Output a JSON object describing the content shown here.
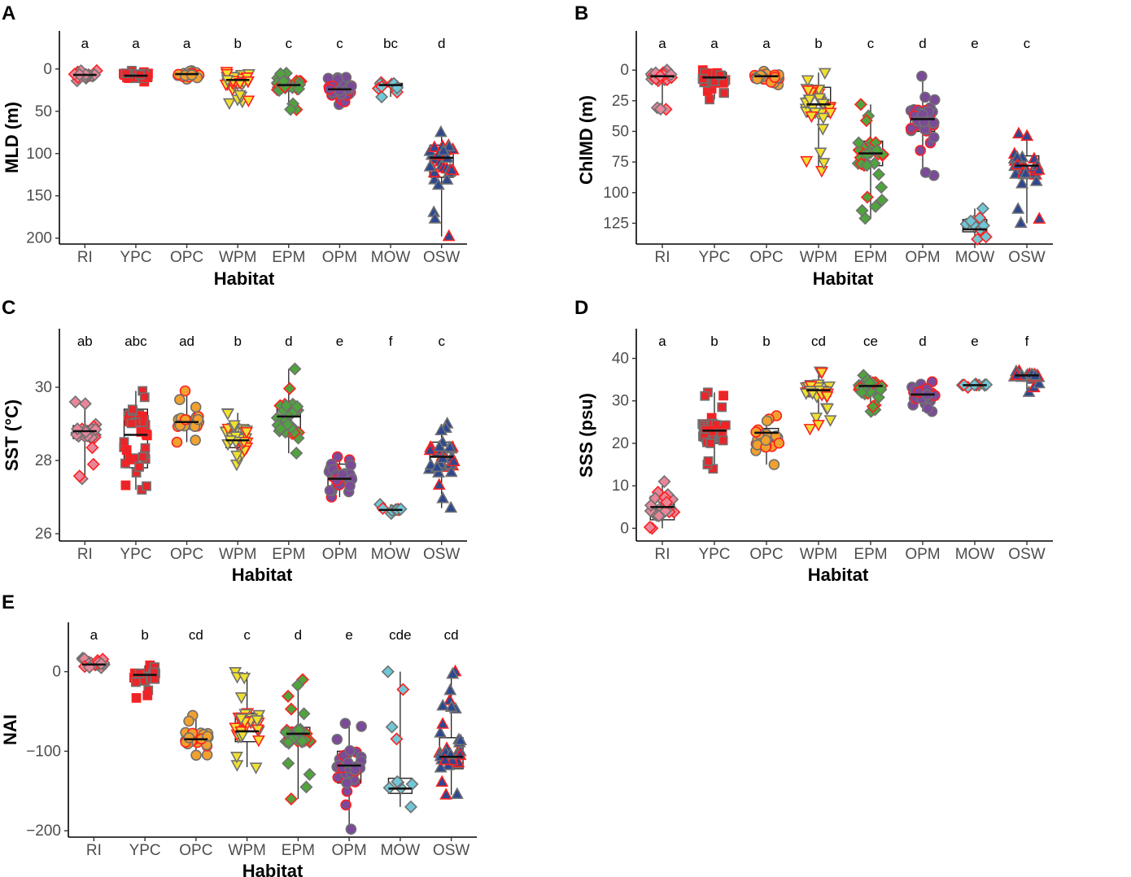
{
  "chart_data": [
    {
      "panel": "A",
      "type": "box",
      "xlabel": "Habitat",
      "ylabel": "MLD (m)",
      "y_reversed": true,
      "ylim": [
        -45,
        207
      ],
      "yticks": [
        0,
        50,
        100,
        150,
        200
      ],
      "categories": [
        "RI",
        "YPC",
        "OPC",
        "WPM",
        "EPM",
        "OPM",
        "MOW",
        "OSW"
      ],
      "letters": [
        "a",
        "a",
        "a",
        "b",
        "c",
        "c",
        "bc",
        "d"
      ],
      "boxes": [
        {
          "q1": 5,
          "median": 7,
          "q3": 9,
          "min": 2,
          "max": 14
        },
        {
          "q1": 5,
          "median": 8,
          "q3": 11,
          "min": 2,
          "max": 15
        },
        {
          "q1": 5,
          "median": 6,
          "q3": 8,
          "min": 2,
          "max": 12
        },
        {
          "q1": 8,
          "median": 13,
          "q3": 18,
          "min": 3,
          "max": 40
        },
        {
          "q1": 14,
          "median": 19,
          "q3": 26,
          "min": 5,
          "max": 48
        },
        {
          "q1": 19,
          "median": 24,
          "q3": 30,
          "min": 10,
          "max": 42
        },
        {
          "q1": 17,
          "median": 19,
          "q3": 21,
          "min": 16,
          "max": 33
        },
        {
          "q1": 90,
          "median": 105,
          "q3": 128,
          "min": 75,
          "max": 198
        }
      ]
    },
    {
      "panel": "B",
      "type": "box",
      "xlabel": "Habitat",
      "ylabel": "ChlMD (m)",
      "y_reversed": true,
      "ylim": [
        -32,
        142
      ],
      "yticks": [
        0,
        25,
        50,
        75,
        100,
        125
      ],
      "categories": [
        "RI",
        "YPC",
        "OPC",
        "WPM",
        "EPM",
        "OPM",
        "MOW",
        "OSW"
      ],
      "letters": [
        "a",
        "a",
        "a",
        "b",
        "c",
        "d",
        "e",
        "c"
      ],
      "boxes": [
        {
          "q1": 2,
          "median": 5,
          "q3": 8,
          "min": 0,
          "max": 32
        },
        {
          "q1": 2,
          "median": 6,
          "q3": 11,
          "min": 0,
          "max": 24
        },
        {
          "q1": 3,
          "median": 5,
          "q3": 7,
          "min": 1,
          "max": 12
        },
        {
          "q1": 14,
          "median": 28,
          "q3": 38,
          "min": 2,
          "max": 82
        },
        {
          "q1": 58,
          "median": 68,
          "q3": 78,
          "min": 28,
          "max": 121
        },
        {
          "q1": 32,
          "median": 40,
          "q3": 50,
          "min": 5,
          "max": 86
        },
        {
          "q1": 122,
          "median": 130,
          "q3": 132,
          "min": 113,
          "max": 138
        },
        {
          "q1": 70,
          "median": 78,
          "q3": 86,
          "min": 52,
          "max": 125
        }
      ]
    },
    {
      "panel": "C",
      "type": "box",
      "xlabel": "Habitat",
      "ylabel": "SST (°C)",
      "y_reversed": false,
      "ylim": [
        25.8,
        31.6
      ],
      "yticks": [
        26,
        28,
        30
      ],
      "categories": [
        "RI",
        "YPC",
        "OPC",
        "WPM",
        "EPM",
        "OPM",
        "MOW",
        "OSW"
      ],
      "letters": [
        "ab",
        "abc",
        "ad",
        "b",
        "d",
        "e",
        "f",
        "c"
      ],
      "boxes": [
        {
          "q1": 28.6,
          "median": 28.8,
          "q3": 28.95,
          "min": 27.5,
          "max": 29.6
        },
        {
          "q1": 27.8,
          "median": 28.7,
          "q3": 29.4,
          "min": 27.2,
          "max": 29.9
        },
        {
          "q1": 28.85,
          "median": 29.05,
          "q3": 29.2,
          "min": 28.5,
          "max": 29.9
        },
        {
          "q1": 28.35,
          "median": 28.55,
          "q3": 28.95,
          "min": 27.9,
          "max": 29.3
        },
        {
          "q1": 28.75,
          "median": 29.2,
          "q3": 29.55,
          "min": 28.2,
          "max": 30.5
        },
        {
          "q1": 27.3,
          "median": 27.5,
          "q3": 27.9,
          "min": 27.0,
          "max": 28.1
        },
        {
          "q1": 26.63,
          "median": 26.65,
          "q3": 26.68,
          "min": 26.55,
          "max": 26.8
        },
        {
          "q1": 27.8,
          "median": 28.1,
          "q3": 28.5,
          "min": 26.7,
          "max": 29.0
        }
      ]
    },
    {
      "panel": "D",
      "type": "box",
      "xlabel": "Habitat",
      "ylabel": "SSS (psu)",
      "y_reversed": false,
      "ylim": [
        -3,
        47
      ],
      "yticks": [
        0,
        10,
        20,
        30,
        40
      ],
      "categories": [
        "RI",
        "YPC",
        "OPC",
        "WPM",
        "EPM",
        "OPM",
        "MOW",
        "OSW"
      ],
      "letters": [
        "a",
        "b",
        "b",
        "cd",
        "ce",
        "d",
        "e",
        "f"
      ],
      "boxes": [
        {
          "q1": 2,
          "median": 5,
          "q3": 7.5,
          "min": 0,
          "max": 11
        },
        {
          "q1": 20,
          "median": 23,
          "q3": 25,
          "min": 14,
          "max": 32
        },
        {
          "q1": 19,
          "median": 22.5,
          "q3": 23.5,
          "min": 15,
          "max": 26.5
        },
        {
          "q1": 31,
          "median": 32.5,
          "q3": 34,
          "min": 23.5,
          "max": 37
        },
        {
          "q1": 32,
          "median": 33.5,
          "q3": 34.5,
          "min": 27.5,
          "max": 36
        },
        {
          "q1": 30.5,
          "median": 31.5,
          "q3": 32.5,
          "min": 27.5,
          "max": 34.5
        },
        {
          "q1": 33.5,
          "median": 33.7,
          "q3": 33.9,
          "min": 33.2,
          "max": 34
        },
        {
          "q1": 35.5,
          "median": 36,
          "q3": 36.3,
          "min": 32,
          "max": 37
        }
      ]
    },
    {
      "panel": "E",
      "type": "box",
      "xlabel": "Habitat",
      "ylabel": "NAI",
      "y_reversed": false,
      "ylim": [
        -208,
        62
      ],
      "yticks": [
        0,
        -100,
        -200
      ],
      "categories": [
        "RI",
        "YPC",
        "OPC",
        "WPM",
        "EPM",
        "OPM",
        "MOW",
        "OSW"
      ],
      "letters": [
        "a",
        "b",
        "cd",
        "c",
        "d",
        "e",
        "cde",
        "cd"
      ],
      "boxes": [
        {
          "q1": 7,
          "median": 9,
          "q3": 12,
          "min": 5,
          "max": 17
        },
        {
          "q1": -10,
          "median": -4,
          "q3": 0,
          "min": -33,
          "max": 8
        },
        {
          "q1": -92,
          "median": -85,
          "q3": -76,
          "min": -105,
          "max": -55
        },
        {
          "q1": -88,
          "median": -75,
          "q3": -52,
          "min": -120,
          "max": 0
        },
        {
          "q1": -90,
          "median": -78,
          "q3": -70,
          "min": -160,
          "max": -10
        },
        {
          "q1": -140,
          "median": -118,
          "q3": -100,
          "min": -198,
          "max": -65
        },
        {
          "q1": -153,
          "median": -147,
          "q3": -134,
          "min": -170,
          "max": 0
        },
        {
          "q1": -122,
          "median": -107,
          "q3": -83,
          "min": -155,
          "max": 0
        }
      ]
    }
  ],
  "colors": {
    "RI": "#e8869a",
    "YPC": "#e8262a",
    "OPC": "#f0a12e",
    "WPM": "#f2e031",
    "EPM": "#4fa43c",
    "OPM": "#7b4a99",
    "MOW": "#70c7d6",
    "OSW": "#2d4891",
    "point_edge": "#707070",
    "accent_red": "#ff2020"
  }
}
